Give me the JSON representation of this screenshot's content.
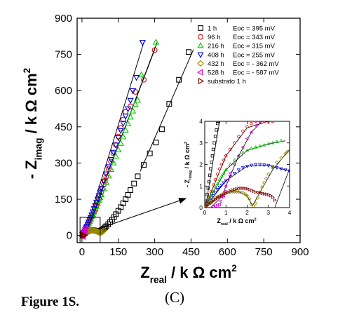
{
  "caption": {
    "figure": "Figure 1S.",
    "panel": "(C)"
  },
  "chart_data": [
    {
      "type": "scatter",
      "title": "",
      "xlabel": "Z",
      "xlabel_sub": "real",
      "xlabel_unit": "/ k Ω cm",
      "xlabel_sup": "2",
      "ylabel_prefix": "- Z",
      "ylabel_sub": "imag",
      "ylabel_unit": "/ k Ω cm",
      "ylabel_sup": "2",
      "xlim": [
        -20,
        900
      ],
      "ylim": [
        -30,
        900
      ],
      "x_ticks": [
        0,
        150,
        300,
        450,
        600,
        750,
        900
      ],
      "y_ticks": [
        0,
        150,
        300,
        450,
        600,
        750,
        900
      ],
      "legend_position": "top-right",
      "legend": [
        {
          "label": "1 h",
          "eoc": "Eoc = 395 mV",
          "marker": "square",
          "color": "#000000"
        },
        {
          "label": "96 h",
          "eoc": "Eoc = 343 mV",
          "marker": "circle",
          "color": "#e00000"
        },
        {
          "label": "216 h",
          "eoc": "Eoc = 315 mV",
          "marker": "triangle-up",
          "color": "#00cc00"
        },
        {
          "label": "408 h",
          "eoc": "Eoc = 255 mV",
          "marker": "triangle-down",
          "color": "#0000dd"
        },
        {
          "label": "432 h",
          "eoc": "Eoc = - 362 mV",
          "marker": "diamond",
          "color": "#9a8a00"
        },
        {
          "label": "528 h",
          "eoc": "Eoc = - 587 mV",
          "marker": "triangle-left",
          "color": "#dd00dd"
        },
        {
          "label": "substrato 1 h",
          "eoc": "",
          "marker": "triangle-right",
          "color": "#800000"
        }
      ],
      "series": [
        {
          "marker": "square",
          "color": "#000000",
          "x": [
            3,
            6,
            10,
            15,
            20,
            25,
            30,
            35,
            40,
            45,
            50,
            55,
            60,
            65,
            70,
            75,
            80,
            85,
            90,
            95,
            100,
            108,
            116,
            124,
            132,
            140,
            150,
            160,
            170,
            180,
            190,
            200,
            215,
            230,
            255,
            280,
            305,
            330,
            360,
            400,
            440
          ],
          "y": [
            2,
            5,
            9,
            13,
            16,
            18,
            20,
            21,
            22,
            22,
            21,
            20,
            19,
            18,
            18,
            19,
            21,
            24,
            28,
            33,
            38,
            46,
            55,
            65,
            76,
            88,
            102,
            117,
            133,
            150,
            168,
            188,
            215,
            245,
            292,
            340,
            385,
            440,
            545,
            645,
            760
          ]
        },
        {
          "marker": "circle",
          "color": "#e00000",
          "x": [
            2,
            4,
            6,
            8,
            10,
            12,
            15,
            18,
            21,
            24,
            27,
            30,
            33,
            36,
            40,
            45,
            50,
            55,
            60,
            65,
            70,
            75,
            80,
            85,
            90,
            95,
            100,
            110,
            120,
            130,
            140,
            150,
            160,
            170,
            180,
            200,
            220,
            255,
            300
          ],
          "y": [
            3,
            6,
            10,
            14,
            18,
            23,
            28,
            34,
            40,
            46,
            52,
            58,
            64,
            70,
            78,
            88,
            99,
            111,
            124,
            137,
            151,
            165,
            180,
            195,
            211,
            227,
            243,
            275,
            306,
            340,
            375,
            410,
            445,
            480,
            512,
            535,
            595,
            645,
            768
          ]
        },
        {
          "marker": "triangle-up",
          "color": "#00cc00",
          "x": [
            2,
            5,
            8,
            11,
            14,
            17,
            20,
            24,
            28,
            32,
            36,
            40,
            45,
            50,
            55,
            60,
            65,
            70,
            75,
            80,
            90,
            100,
            110,
            120,
            130,
            140,
            150,
            160,
            170,
            180,
            190,
            200,
            210,
            220,
            230,
            245,
            305
          ],
          "y": [
            3,
            7,
            12,
            17,
            22,
            28,
            34,
            42,
            50,
            58,
            67,
            76,
            86,
            97,
            108,
            120,
            132,
            144,
            156,
            168,
            193,
            219,
            246,
            273,
            300,
            327,
            354,
            381,
            408,
            435,
            462,
            490,
            515,
            543,
            560,
            665,
            800
          ]
        },
        {
          "marker": "triangle-down",
          "color": "#0000dd",
          "x": [
            2,
            5,
            8,
            11,
            14,
            17,
            20,
            24,
            28,
            32,
            36,
            40,
            45,
            50,
            55,
            60,
            65,
            70,
            75,
            80,
            90,
            100,
            110,
            120,
            130,
            140,
            150,
            160,
            170,
            180,
            190,
            200,
            210,
            225,
            250
          ],
          "y": [
            3,
            8,
            13,
            19,
            25,
            32,
            38,
            47,
            56,
            65,
            75,
            85,
            98,
            111,
            124,
            137,
            151,
            165,
            180,
            195,
            225,
            255,
            285,
            315,
            345,
            375,
            405,
            435,
            465,
            495,
            525,
            560,
            600,
            655,
            800
          ]
        },
        {
          "marker": "diamond",
          "color": "#9a8a00",
          "x": [
            5,
            10,
            15,
            20,
            25,
            30,
            35,
            40,
            45,
            50,
            55,
            60,
            65,
            70,
            75,
            80,
            85,
            90
          ],
          "y": [
            4,
            8,
            12,
            15,
            17,
            19,
            20,
            21,
            21,
            20,
            19,
            17,
            15,
            13,
            12,
            13,
            16,
            20
          ]
        },
        {
          "marker": "triangle-left",
          "color": "#dd00dd",
          "x": [
            1,
            2,
            3,
            4,
            5,
            6,
            7,
            8,
            9,
            10,
            12,
            14,
            16
          ],
          "y": [
            -2,
            -3,
            -4,
            -4,
            -3,
            -1,
            2,
            6,
            10,
            14,
            20,
            26,
            32
          ]
        },
        {
          "marker": "triangle-right",
          "color": "#800000",
          "x": [
            1,
            2,
            3,
            4,
            5,
            6,
            7,
            8,
            9,
            10
          ],
          "y": [
            0.5,
            0.8,
            1.0,
            1.1,
            1.0,
            0.8,
            0.6,
            0.4,
            0.3,
            0.2
          ]
        }
      ],
      "fit_lines": [
        {
          "color": "#000000",
          "x": [
            240,
            460
          ],
          "y": [
            265,
            770
          ]
        },
        {
          "color": "#000000",
          "x": [
            20,
            300
          ],
          "y": [
            30,
            770
          ]
        },
        {
          "color": "#000000",
          "x": [
            20,
            310
          ],
          "y": [
            30,
            800
          ]
        },
        {
          "color": "#000000",
          "x": [
            20,
            255
          ],
          "y": [
            35,
            800
          ]
        }
      ]
    },
    {
      "type": "scatter",
      "title": "",
      "xlabel": "Z",
      "xlabel_sub": "real",
      "xlabel_unit": "/ k Ω cm",
      "xlabel_sup": "2",
      "ylabel_prefix": "- Z",
      "ylabel_sub": "imag",
      "ylabel_unit": "/ k Ω cm",
      "ylabel_sup": "2",
      "xlim": [
        0,
        4
      ],
      "ylim": [
        0,
        4
      ],
      "x_ticks": [
        0,
        1,
        2,
        3,
        4
      ],
      "y_ticks": [
        0,
        1,
        2,
        3,
        4
      ],
      "series": [
        {
          "marker": "square",
          "color": "#000000",
          "x": [
            0.08,
            0.12,
            0.16,
            0.2,
            0.24,
            0.28,
            0.32,
            0.36,
            0.4,
            0.45,
            0.5,
            0.55,
            0.6,
            0.65
          ],
          "y": [
            0.3,
            0.6,
            0.9,
            1.2,
            1.5,
            1.8,
            2.1,
            2.4,
            2.7,
            3.0,
            3.3,
            3.6,
            3.9,
            4.0
          ]
        },
        {
          "marker": "circle",
          "color": "#e00000",
          "x": [
            0.1,
            0.2,
            0.3,
            0.4,
            0.5,
            0.6,
            0.7,
            0.8,
            0.9,
            1.0,
            1.2,
            1.4,
            1.6,
            1.8,
            2.0,
            2.2,
            2.4,
            2.6,
            2.8,
            3.0,
            3.2
          ],
          "y": [
            0.2,
            0.45,
            0.75,
            1.05,
            1.3,
            1.55,
            1.8,
            2.0,
            2.2,
            2.4,
            2.7,
            3.0,
            3.3,
            3.55,
            3.75,
            3.9,
            4.0,
            4.0,
            4.0,
            4.0,
            4.0
          ]
        },
        {
          "marker": "triangle-up",
          "color": "#00cc00",
          "x": [
            0.1,
            0.2,
            0.3,
            0.4,
            0.5,
            0.6,
            0.7,
            0.8,
            0.9,
            1.0,
            1.2,
            1.4,
            1.6,
            1.8,
            2.0,
            2.2,
            2.4,
            2.6,
            2.8,
            3.0,
            3.2,
            3.4,
            3.6
          ],
          "y": [
            0.15,
            0.35,
            0.55,
            0.75,
            0.95,
            1.1,
            1.3,
            1.45,
            1.6,
            1.75,
            2.0,
            2.2,
            2.4,
            2.55,
            2.65,
            2.75,
            2.8,
            2.85,
            2.9,
            2.95,
            3.0,
            3.05,
            3.1
          ]
        },
        {
          "marker": "triangle-down",
          "color": "#0000dd",
          "x": [
            0.1,
            0.2,
            0.3,
            0.4,
            0.5,
            0.6,
            0.7,
            0.8,
            0.9,
            1.0,
            1.2,
            1.4,
            1.6,
            1.8,
            2.0,
            2.2,
            2.4,
            2.6,
            2.8,
            3.0,
            3.2,
            3.4,
            3.6,
            3.8,
            4.0
          ],
          "y": [
            0.1,
            0.25,
            0.4,
            0.55,
            0.7,
            0.85,
            0.95,
            1.05,
            1.15,
            1.25,
            1.45,
            1.6,
            1.75,
            1.85,
            1.92,
            1.97,
            2.0,
            2.0,
            1.98,
            1.95,
            1.9,
            1.85,
            1.8,
            1.75,
            1.7
          ]
        },
        {
          "marker": "diamond",
          "color": "#9a8a00",
          "x": [
            0.1,
            0.2,
            0.3,
            0.4,
            0.5,
            0.6,
            0.7,
            0.8,
            0.9,
            1.0,
            1.1,
            1.2,
            1.3,
            1.4,
            1.5,
            1.6,
            1.7,
            1.8,
            1.9,
            2.0,
            2.1,
            2.2,
            2.3,
            2.4,
            2.5,
            2.6,
            2.7,
            2.8,
            2.9,
            3.0,
            3.2,
            3.4,
            3.6,
            3.8,
            3.9
          ],
          "y": [
            0.1,
            0.2,
            0.28,
            0.36,
            0.44,
            0.5,
            0.55,
            0.6,
            0.64,
            0.67,
            0.7,
            0.72,
            0.73,
            0.74,
            0.74,
            0.73,
            0.71,
            0.68,
            0.63,
            0.55,
            0.4,
            0.15,
            0.08,
            0.2,
            0.45,
            0.7,
            0.95,
            1.15,
            1.35,
            1.55,
            1.85,
            2.1,
            2.3,
            2.5,
            2.6
          ]
        },
        {
          "marker": "triangle-left",
          "color": "#dd00dd",
          "x": [
            0.4,
            0.5,
            0.6,
            0.7,
            0.75,
            0.8,
            0.85,
            0.9,
            0.95,
            1.0,
            1.1,
            1.2,
            1.4,
            1.6,
            1.8,
            2.0,
            2.2,
            2.4,
            2.6
          ],
          "y": [
            0.05,
            0.08,
            0.12,
            0.15,
            0.3,
            0.5,
            0.5,
            0.55,
            0.75,
            1.0,
            1.3,
            1.6,
            2.0,
            2.4,
            2.8,
            3.2,
            3.5,
            3.8,
            4.0
          ]
        },
        {
          "marker": "triangle-right",
          "color": "#800000",
          "x": [
            0.1,
            0.2,
            0.3,
            0.4,
            0.5,
            0.6,
            0.7,
            0.8,
            0.9,
            1.0,
            1.1,
            1.2,
            1.3,
            1.4,
            1.5,
            1.6,
            1.7,
            1.8,
            1.9,
            2.0,
            2.1,
            2.2,
            2.3,
            2.4,
            2.5,
            2.6,
            2.7,
            2.8,
            2.9,
            3.0,
            3.1,
            3.2,
            3.3
          ],
          "y": [
            0.08,
            0.15,
            0.22,
            0.3,
            0.37,
            0.44,
            0.5,
            0.56,
            0.62,
            0.67,
            0.72,
            0.77,
            0.81,
            0.84,
            0.87,
            0.89,
            0.9,
            0.9,
            0.89,
            0.87,
            0.84,
            0.8,
            0.76,
            0.72,
            0.7,
            0.68,
            0.66,
            0.64,
            0.62,
            0.6,
            0.56,
            0.48,
            0.35
          ]
        }
      ],
      "fit_lines": [
        {
          "color": "#000000",
          "x": [
            0.05,
            0.7
          ],
          "y": [
            0.1,
            4.0
          ]
        },
        {
          "color": "#000000",
          "x": [
            0.05,
            1.0,
            2.0,
            3.0,
            3.6
          ],
          "y": [
            0.1,
            2.4,
            3.7,
            4.0,
            4.0
          ]
        },
        {
          "color": "#000000",
          "x": [
            0.05,
            1.0,
            2.0,
            3.0,
            3.8
          ],
          "y": [
            0.1,
            1.75,
            2.65,
            2.95,
            3.1
          ]
        },
        {
          "color": "#000000",
          "x": [
            0.05,
            1.0,
            2.0,
            3.0,
            4.0
          ],
          "y": [
            0.05,
            1.25,
            1.92,
            1.95,
            1.7
          ]
        },
        {
          "color": "#000000",
          "x": [
            0.05,
            0.6,
            1.2,
            1.6,
            2.0,
            2.25,
            2.6,
            3.2,
            4.0
          ],
          "y": [
            0.05,
            0.5,
            0.72,
            0.73,
            0.55,
            0.08,
            0.7,
            1.75,
            2.7
          ]
        },
        {
          "color": "#000000",
          "x": [
            0.3,
            0.8,
            1.0,
            1.6,
            2.2,
            2.7
          ],
          "y": [
            0.02,
            0.5,
            1.0,
            2.4,
            3.5,
            4.0
          ]
        },
        {
          "color": "#000000",
          "x": [
            3.3,
            4.0
          ],
          "y": [
            0.0,
            1.8
          ]
        }
      ]
    }
  ]
}
